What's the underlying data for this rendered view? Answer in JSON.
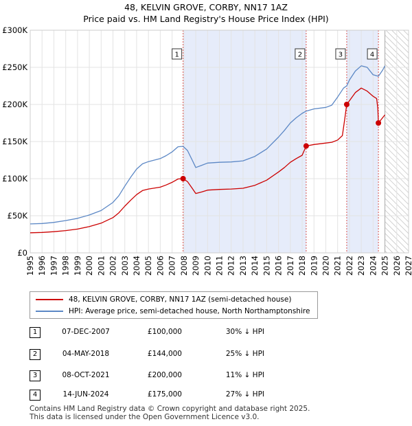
{
  "title_line1": "48, KELVIN GROVE, CORBY, NN17 1AZ",
  "title_line2": "Price paid vs. HM Land Registry's House Price Index (HPI)",
  "colors": {
    "property": "#cc0000",
    "hpi": "#5b87c5",
    "shade": "#e6ecfa",
    "vline": "#d9534f"
  },
  "legend": {
    "property_label": "48, KELVIN GROVE, CORBY, NN17 1AZ (semi-detached house)",
    "hpi_label": "HPI: Average price, semi-detached house, North Northamptonshire"
  },
  "transactions": [
    {
      "num": "1",
      "date": "07-DEC-2007",
      "price": "£100,000",
      "hpi": "30% ↓ HPI"
    },
    {
      "num": "2",
      "date": "04-MAY-2018",
      "price": "£144,000",
      "hpi": "25% ↓ HPI"
    },
    {
      "num": "3",
      "date": "08-OCT-2021",
      "price": "£200,000",
      "hpi": "11% ↓ HPI"
    },
    {
      "num": "4",
      "date": "14-JUN-2024",
      "price": "£175,000",
      "hpi": "27% ↓ HPI"
    }
  ],
  "footer_line1": "Contains HM Land Registry data © Crown copyright and database right 2025.",
  "footer_line2": "This data is licensed under the Open Government Licence v3.0.",
  "chart_data": {
    "type": "line",
    "title": "48, KELVIN GROVE, CORBY, NN17 1AZ — Price paid vs. HM Land Registry's House Price Index (HPI)",
    "xlim": [
      1995,
      2027
    ],
    "ylim": [
      0,
      300000
    ],
    "x_ticks": [
      1995,
      1996,
      1997,
      1998,
      1999,
      2000,
      2001,
      2002,
      2003,
      2004,
      2005,
      2006,
      2007,
      2008,
      2009,
      2010,
      2011,
      2012,
      2013,
      2014,
      2015,
      2016,
      2017,
      2018,
      2019,
      2020,
      2021,
      2022,
      2023,
      2024,
      2025,
      2026,
      2027
    ],
    "y_ticks": [
      {
        "value": 0,
        "label": "£0"
      },
      {
        "value": 50000,
        "label": "£50K"
      },
      {
        "value": 100000,
        "label": "£100K"
      },
      {
        "value": 150000,
        "label": "£150K"
      },
      {
        "value": 200000,
        "label": "£200K"
      },
      {
        "value": 250000,
        "label": "£250K"
      },
      {
        "value": 300000,
        "label": "£300K"
      }
    ],
    "forecast_from": 2025.0,
    "shaded_periods": [
      [
        2007.93,
        2018.34
      ],
      [
        2021.77,
        2024.45
      ]
    ],
    "sales": [
      {
        "label": "1",
        "x": 2007.93,
        "y": 100000
      },
      {
        "label": "2",
        "x": 2018.34,
        "y": 144000
      },
      {
        "label": "3",
        "x": 2021.77,
        "y": 200000
      },
      {
        "label": "4",
        "x": 2024.45,
        "y": 175000
      }
    ],
    "series": [
      {
        "name": "HPI: Average price, semi-detached house, North Northamptonshire",
        "color_key": "hpi",
        "points": [
          [
            1995.0,
            39000
          ],
          [
            1996.0,
            39500
          ],
          [
            1997.0,
            41000
          ],
          [
            1998.0,
            43500
          ],
          [
            1999.0,
            46500
          ],
          [
            2000.0,
            51000
          ],
          [
            2001.0,
            57000
          ],
          [
            2002.0,
            68000
          ],
          [
            2002.5,
            77000
          ],
          [
            2003.0,
            90000
          ],
          [
            2003.5,
            102000
          ],
          [
            2004.0,
            113000
          ],
          [
            2004.5,
            120000
          ],
          [
            2005.0,
            123000
          ],
          [
            2006.0,
            127000
          ],
          [
            2006.5,
            131000
          ],
          [
            2007.0,
            136000
          ],
          [
            2007.5,
            143000
          ],
          [
            2007.93,
            143500
          ],
          [
            2008.3,
            138000
          ],
          [
            2008.7,
            125000
          ],
          [
            2009.0,
            115000
          ],
          [
            2009.5,
            118000
          ],
          [
            2010.0,
            121000
          ],
          [
            2011.0,
            122000
          ],
          [
            2012.0,
            122500
          ],
          [
            2013.0,
            124000
          ],
          [
            2014.0,
            130000
          ],
          [
            2015.0,
            140000
          ],
          [
            2016.0,
            156000
          ],
          [
            2016.5,
            165000
          ],
          [
            2017.0,
            175000
          ],
          [
            2017.5,
            182000
          ],
          [
            2018.0,
            188000
          ],
          [
            2018.34,
            191000
          ],
          [
            2019.0,
            194000
          ],
          [
            2020.0,
            196000
          ],
          [
            2020.5,
            199000
          ],
          [
            2021.0,
            210000
          ],
          [
            2021.5,
            222000
          ],
          [
            2021.77,
            225000
          ],
          [
            2022.0,
            233000
          ],
          [
            2022.5,
            245000
          ],
          [
            2023.0,
            252000
          ],
          [
            2023.5,
            250000
          ],
          [
            2024.0,
            240000
          ],
          [
            2024.45,
            238000
          ],
          [
            2024.8,
            246000
          ],
          [
            2025.0,
            252000
          ]
        ]
      },
      {
        "name": "48, KELVIN GROVE, CORBY, NN17 1AZ (semi-detached house)",
        "color_key": "property",
        "points": [
          [
            1995.0,
            27000
          ],
          [
            1996.0,
            27500
          ],
          [
            1997.0,
            28500
          ],
          [
            1998.0,
            30000
          ],
          [
            1999.0,
            32000
          ],
          [
            2000.0,
            35500
          ],
          [
            2001.0,
            40000
          ],
          [
            2002.0,
            47500
          ],
          [
            2002.5,
            54000
          ],
          [
            2003.0,
            63000
          ],
          [
            2003.5,
            71000
          ],
          [
            2004.0,
            78500
          ],
          [
            2004.5,
            84000
          ],
          [
            2005.0,
            86000
          ],
          [
            2006.0,
            88500
          ],
          [
            2006.5,
            91500
          ],
          [
            2007.0,
            95000
          ],
          [
            2007.5,
            99500
          ],
          [
            2007.93,
            100000
          ],
          [
            2008.3,
            96000
          ],
          [
            2008.7,
            87000
          ],
          [
            2009.0,
            80000
          ],
          [
            2009.5,
            82000
          ],
          [
            2010.0,
            84500
          ],
          [
            2011.0,
            85500
          ],
          [
            2012.0,
            86000
          ],
          [
            2013.0,
            87000
          ],
          [
            2014.0,
            91000
          ],
          [
            2015.0,
            98000
          ],
          [
            2016.0,
            109000
          ],
          [
            2016.5,
            115000
          ],
          [
            2017.0,
            122000
          ],
          [
            2017.5,
            127000
          ],
          [
            2018.0,
            131500
          ],
          [
            2018.34,
            144000
          ],
          [
            2019.0,
            146000
          ],
          [
            2020.0,
            148000
          ],
          [
            2020.5,
            149000
          ],
          [
            2021.0,
            152000
          ],
          [
            2021.4,
            158000
          ],
          [
            2021.6,
            180000
          ],
          [
            2021.77,
            200000
          ],
          [
            2022.0,
            205000
          ],
          [
            2022.5,
            216000
          ],
          [
            2023.0,
            222000
          ],
          [
            2023.5,
            218000
          ],
          [
            2024.0,
            211000
          ],
          [
            2024.3,
            208000
          ],
          [
            2024.4,
            195000
          ],
          [
            2024.45,
            175000
          ],
          [
            2024.7,
            180000
          ],
          [
            2025.0,
            186000
          ]
        ]
      }
    ]
  }
}
